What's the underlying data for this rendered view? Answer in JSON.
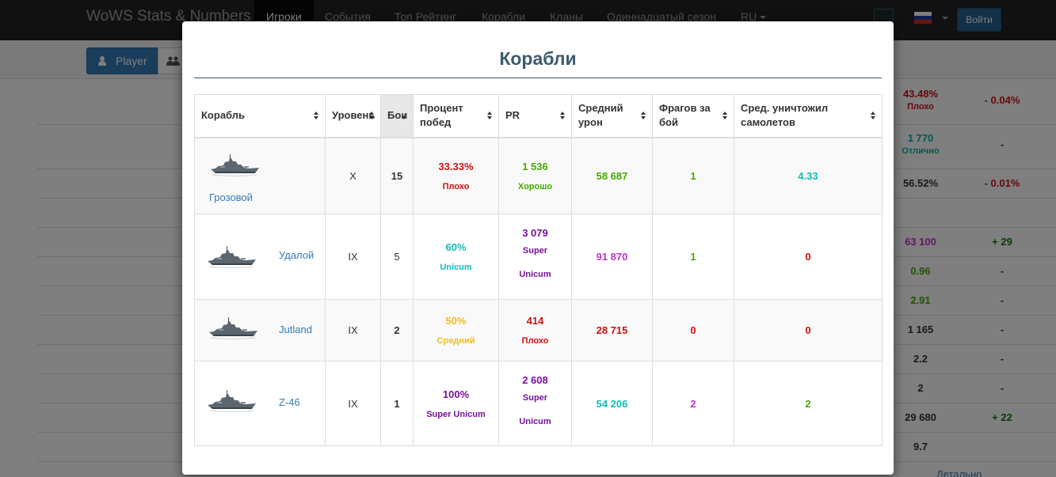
{
  "navbar": {
    "brand": "WoWS Stats & Numbers",
    "items": [
      {
        "label": "Игроки",
        "active": true
      },
      {
        "label": "События"
      },
      {
        "label": "Топ Рейтинг"
      },
      {
        "label": "Корабли"
      },
      {
        "label": "Кланы"
      },
      {
        "label": "Одиннадцатый сезон"
      },
      {
        "label": "RU"
      }
    ],
    "login_label": "Войти",
    "flag_colors": [
      "#ffffff",
      "#1e3ea8",
      "#d52b1e"
    ]
  },
  "subbar": {
    "player_label": "Player"
  },
  "background_stats": {
    "rows": [
      {
        "value": "43.48%",
        "rating": "Плохо",
        "delta": "- 0.04%",
        "value_color": "#cc1111",
        "delta_color": "#cc1111"
      },
      {
        "value": "1 770",
        "rating": "Отлично",
        "delta": "-",
        "value_color": "#11aaaa",
        "delta_color": "#333333"
      },
      {
        "value": "56.52%",
        "rating": "",
        "delta": "- 0.01%",
        "value_color": "#333333",
        "delta_color": "#cc1111"
      },
      {
        "value": "63 100",
        "rating": "",
        "delta": "+ 29",
        "value_color": "#bb33cc",
        "delta_color": "#117711"
      },
      {
        "value": "0.96",
        "rating": "",
        "delta": "-",
        "value_color": "#44aa00",
        "delta_color": "#333333"
      },
      {
        "value": "2.91",
        "rating": "",
        "delta": "-",
        "value_color": "#44aa00",
        "delta_color": "#333333"
      },
      {
        "value": "1 165",
        "rating": "",
        "delta": "-",
        "value_color": "#333333",
        "delta_color": "#333333"
      },
      {
        "value": "2.2",
        "rating": "",
        "delta": "-",
        "value_color": "#333333",
        "delta_color": "#333333"
      },
      {
        "value": "2",
        "rating": "",
        "delta": "-",
        "value_color": "#333333",
        "delta_color": "#333333"
      },
      {
        "value": "29 680",
        "rating": "",
        "delta": "+ 22",
        "value_color": "#333333",
        "delta_color": "#117711"
      },
      {
        "value": "9.7",
        "rating": "",
        "delta": "",
        "value_color": "#333333",
        "delta_color": "#333333"
      }
    ],
    "details_link": "Детально"
  },
  "modal": {
    "title": "Корабли",
    "columns": [
      "Корабль",
      "Уровень",
      "Бои",
      "Процент побед",
      "PR",
      "Средний урон",
      "Фрагов за бой",
      "Сред. уничтожил самолетов"
    ],
    "rows": [
      {
        "ship": "Грозовой",
        "ship_icon": "destroyer-icon",
        "tier": "X",
        "battles": "15",
        "winrate": "33.33%",
        "winrate_label": "Плохо",
        "winrate_color": "red",
        "pr": "1 536",
        "pr_label": "Хорошо",
        "pr_color": "green",
        "damage": "58 687",
        "damage_color": "green",
        "frags": "1",
        "frags_color": "green",
        "planes": "4.33",
        "planes_color": "teal"
      },
      {
        "ship": "Удалой",
        "ship_icon": "destroyer-icon",
        "tier": "IX",
        "battles": "5",
        "winrate": "60%",
        "winrate_label": "Unicum",
        "winrate_color": "teal",
        "pr": "3 079",
        "pr_label": "Super Unicum",
        "pr_color": "purple",
        "damage": "91 870",
        "damage_color": "violet",
        "frags": "1",
        "frags_color": "green",
        "planes": "0",
        "planes_color": "red"
      },
      {
        "ship": "Jutland",
        "ship_icon": "destroyer-icon",
        "tier": "IX",
        "battles": "2",
        "winrate": "50%",
        "winrate_label": "Средний",
        "winrate_color": "yellow",
        "pr": "414",
        "pr_label": "Плохо",
        "pr_color": "red",
        "damage": "28 715",
        "damage_color": "red",
        "frags": "0",
        "frags_color": "red",
        "planes": "0",
        "planes_color": "red"
      },
      {
        "ship": "Z-46",
        "ship_icon": "destroyer-icon",
        "tier": "IX",
        "battles": "1",
        "winrate": "100%",
        "winrate_label": "Super Unicum",
        "winrate_color": "purple",
        "pr": "2 608",
        "pr_label": "Super Unicum",
        "pr_color": "purple",
        "damage": "54 206",
        "damage_color": "teal",
        "frags": "2",
        "frags_color": "violet",
        "planes": "2",
        "planes_color": "green"
      }
    ]
  }
}
